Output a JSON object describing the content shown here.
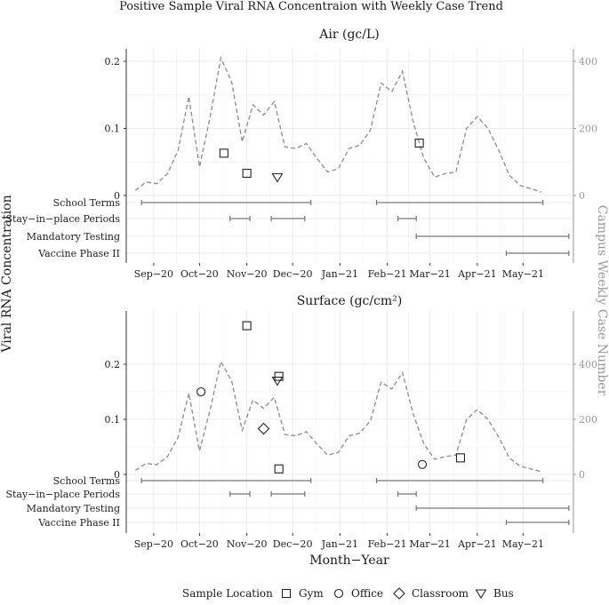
{
  "chart_data": {
    "type": "line",
    "title": "Positive Sample Viral RNA Concentraion with Weekly Case Trend",
    "ylabel": "Viral RNA Concentration",
    "y2label": "Campus Weekly Case Number",
    "xlabel": "Month−Year",
    "x_ticks": [
      "Sep−20",
      "Oct−20",
      "Nov−20",
      "Dec−20",
      "Jan−21",
      "Feb−21",
      "Mar−21",
      "Apr−21",
      "May−21"
    ],
    "case_trend": {
      "x": [
        "2020-08-20",
        "2020-08-27",
        "2020-09-03",
        "2020-09-10",
        "2020-09-17",
        "2020-09-24",
        "2020-10-01",
        "2020-10-08",
        "2020-10-15",
        "2020-10-22",
        "2020-10-29",
        "2020-11-05",
        "2020-11-12",
        "2020-11-19",
        "2020-11-26",
        "2020-12-03",
        "2020-12-10",
        "2020-12-17",
        "2020-12-24",
        "2020-12-31",
        "2021-01-07",
        "2021-01-14",
        "2021-01-21",
        "2021-01-28",
        "2021-02-04",
        "2021-02-11",
        "2021-02-18",
        "2021-02-25",
        "2021-03-04",
        "2021-03-11",
        "2021-03-18",
        "2021-03-25",
        "2021-04-01",
        "2021-04-08",
        "2021-04-15",
        "2021-04-22",
        "2021-04-29",
        "2021-05-06",
        "2021-05-13"
      ],
      "values": [
        15,
        40,
        35,
        65,
        135,
        295,
        85,
        235,
        410,
        340,
        160,
        270,
        240,
        280,
        145,
        140,
        155,
        110,
        70,
        80,
        140,
        150,
        195,
        335,
        310,
        370,
        220,
        110,
        55,
        65,
        70,
        200,
        235,
        200,
        135,
        60,
        30,
        20,
        10
      ],
      "y2lim": [
        0,
        450
      ],
      "y2_ticks": [
        "0",
        "200",
        "400"
      ]
    },
    "legend": {
      "title": "Sample Location",
      "entries": [
        {
          "label": "Gym",
          "shape": "square-icon"
        },
        {
          "label": "Office",
          "shape": "circle-icon"
        },
        {
          "label": "Classroom",
          "shape": "diamond-icon"
        },
        {
          "label": "Bus",
          "shape": "triangle-icon"
        }
      ],
      "placement": "bottom"
    },
    "events": [
      {
        "label": "School Terms",
        "ranges": [
          [
            "2020-08-24",
            "2020-12-13"
          ],
          [
            "2021-01-25",
            "2021-05-14"
          ]
        ]
      },
      {
        "label": "Stay−in−place Periods",
        "ranges": [
          [
            "2020-10-21",
            "2020-11-03"
          ],
          [
            "2020-11-17",
            "2020-12-09"
          ],
          [
            "2021-02-08",
            "2021-02-20"
          ]
        ]
      },
      {
        "label": "Mandatory Testing",
        "ranges": [
          [
            "2021-02-20",
            "2021-05-31"
          ]
        ]
      },
      {
        "label": "Vaccine Phase II",
        "ranges": [
          [
            "2021-04-20",
            "2021-05-31"
          ]
        ]
      }
    ],
    "panels": [
      {
        "title": "Air (gc/L)",
        "ylim": [
          0,
          0.22
        ],
        "y_ticks": [
          "0",
          "0.1",
          "0.2"
        ],
        "points": [
          {
            "date": "2020-10-17",
            "value": 0.063,
            "shape": "square-icon"
          },
          {
            "date": "2020-11-01",
            "value": 0.033,
            "shape": "square-icon"
          },
          {
            "date": "2020-11-21",
            "value": 0.027,
            "shape": "triangle-icon"
          },
          {
            "date": "2021-02-22",
            "value": 0.078,
            "shape": "square-icon"
          }
        ]
      },
      {
        "title": "Surface (gc/cm²)",
        "ylim": [
          0,
          0.28
        ],
        "y_ticks": [
          "0",
          "0.1",
          "0.2"
        ],
        "points": [
          {
            "date": "2020-11-01",
            "value": 0.27,
            "shape": "square-icon"
          },
          {
            "date": "2020-11-22",
            "value": 0.178,
            "shape": "square-icon"
          },
          {
            "date": "2020-11-21",
            "value": 0.17,
            "shape": "triangle-icon"
          },
          {
            "date": "2020-10-02",
            "value": 0.15,
            "shape": "circle-icon"
          },
          {
            "date": "2020-11-12",
            "value": 0.083,
            "shape": "diamond-icon"
          },
          {
            "date": "2020-11-22",
            "value": 0.01,
            "shape": "square-icon"
          },
          {
            "date": "2021-02-24",
            "value": 0.018,
            "shape": "circle-icon"
          },
          {
            "date": "2021-03-21",
            "value": 0.03,
            "shape": "square-icon"
          }
        ]
      }
    ]
  }
}
